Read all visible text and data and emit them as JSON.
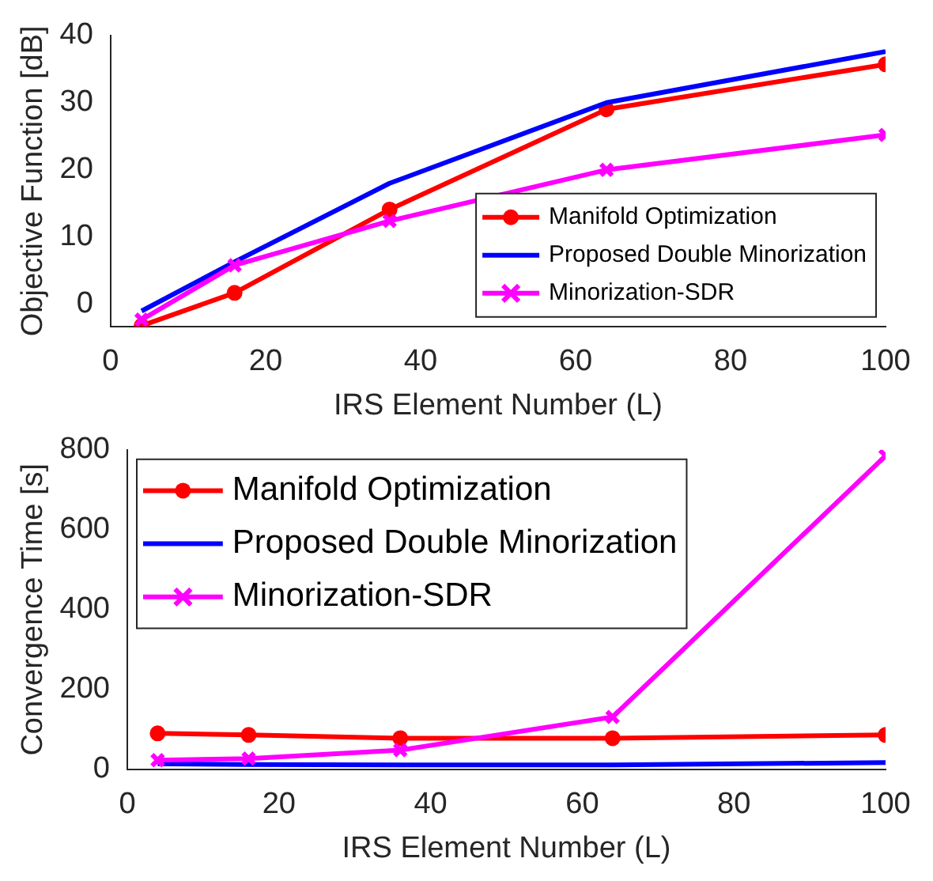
{
  "chart_data": [
    {
      "type": "line",
      "xlabel": "IRS Element Number (L)",
      "ylabel": "Objective Function [dB]",
      "x": [
        4,
        16,
        36,
        64,
        100
      ],
      "xlim": [
        0,
        100
      ],
      "xticks": [
        0,
        20,
        40,
        60,
        80,
        100
      ],
      "ylim": [
        -3.3,
        40
      ],
      "yticks": [
        0,
        10,
        20,
        30,
        40
      ],
      "legend": "bottom right",
      "grid": false,
      "series": [
        {
          "name": "Manifold Optimization",
          "color": "#ff0000",
          "marker": "circle",
          "values": [
            -3.2,
            1.7,
            14.1,
            29,
            35.7
          ]
        },
        {
          "name": "Proposed Double Minorization",
          "color": "#0000ff",
          "marker": "none",
          "values": [
            -1,
            6.3,
            18,
            30,
            37.6
          ]
        },
        {
          "name": "Minorization-SDR",
          "color": "#ff00ff",
          "marker": "cross",
          "values": [
            -2.3,
            5.8,
            12.4,
            20,
            25.2
          ]
        }
      ]
    },
    {
      "type": "line",
      "xlabel": "IRS Element Number (L)",
      "ylabel": "Convergence Time [s]",
      "x": [
        4,
        16,
        36,
        64,
        100
      ],
      "xlim": [
        0,
        100
      ],
      "xticks": [
        0,
        20,
        40,
        60,
        80,
        100
      ],
      "ylim": [
        0,
        800
      ],
      "yticks": [
        0,
        200,
        400,
        600,
        800
      ],
      "legend": "top left",
      "grid": false,
      "series": [
        {
          "name": "Manifold Optimization",
          "color": "#ff0000",
          "marker": "circle",
          "values": [
            90,
            86,
            78,
            78,
            86
          ]
        },
        {
          "name": "Proposed Double Minorization",
          "color": "#0000ff",
          "marker": "none",
          "values": [
            14,
            12,
            11,
            11,
            17
          ]
        },
        {
          "name": "Minorization-SDR",
          "color": "#ff00ff",
          "marker": "cross",
          "values": [
            23,
            27,
            48,
            131,
            785
          ]
        }
      ]
    }
  ]
}
